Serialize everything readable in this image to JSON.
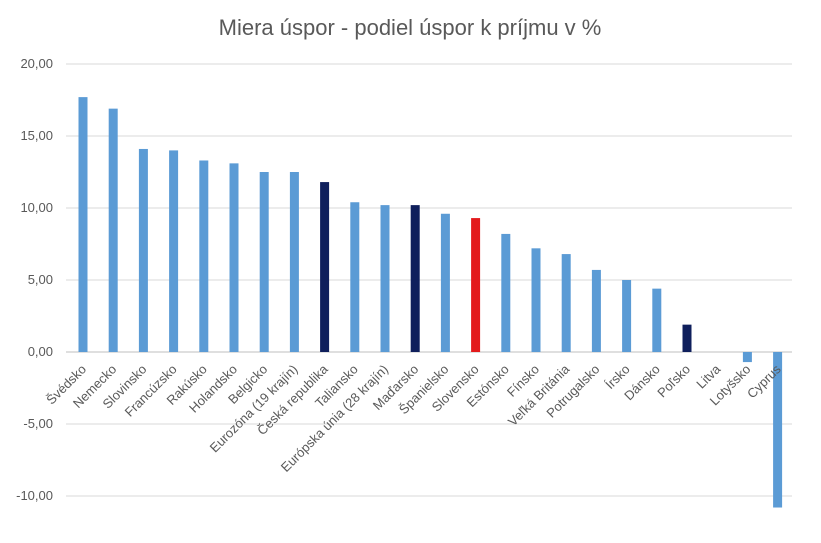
{
  "chart_data": {
    "type": "bar",
    "title": "Miera úspor - podiel úspor k príjmu v %",
    "xlabel": "",
    "ylabel": "",
    "ylim": [
      -10,
      20
    ],
    "yticks": [
      20,
      15,
      10,
      5,
      0,
      -5,
      -10
    ],
    "ytick_labels": [
      "20,00",
      "15,00",
      "10,00",
      "5,00",
      "0,00",
      "-5,00",
      "-10,00"
    ],
    "grid": true,
    "legend": "none",
    "categories": [
      "Švédsko",
      "Nemecko",
      "Slovinsko",
      "Francúzsko",
      "Rakúsko",
      "Holandsko",
      "Belgicko",
      "Eurozóna (19 krajín)",
      "Česká republika",
      "Taliansko",
      "Európska únia (28 krajín)",
      "Maďarsko",
      "Španielsko",
      "Slovensko",
      "Estónsko",
      "Fínsko",
      "Veľká Británia",
      "Potrugalsko",
      "Írsko",
      "Dánsko",
      "Poľsko",
      "Litva",
      "Lotyšsko",
      "Cyprus"
    ],
    "values": [
      17.7,
      16.9,
      14.1,
      14.0,
      13.3,
      13.1,
      12.5,
      12.5,
      11.8,
      10.4,
      10.2,
      10.2,
      9.6,
      9.3,
      8.2,
      7.2,
      6.8,
      5.7,
      5.0,
      4.4,
      1.9,
      0.0,
      -0.7,
      -10.8
    ],
    "bar_colors": [
      "#5b9bd5",
      "#5b9bd5",
      "#5b9bd5",
      "#5b9bd5",
      "#5b9bd5",
      "#5b9bd5",
      "#5b9bd5",
      "#5b9bd5",
      "#0f1f5c",
      "#5b9bd5",
      "#5b9bd5",
      "#0f1f5c",
      "#5b9bd5",
      "#e31a1c",
      "#5b9bd5",
      "#5b9bd5",
      "#5b9bd5",
      "#5b9bd5",
      "#5b9bd5",
      "#5b9bd5",
      "#0f1f5c",
      "#5b9bd5",
      "#5b9bd5",
      "#5b9bd5"
    ]
  }
}
